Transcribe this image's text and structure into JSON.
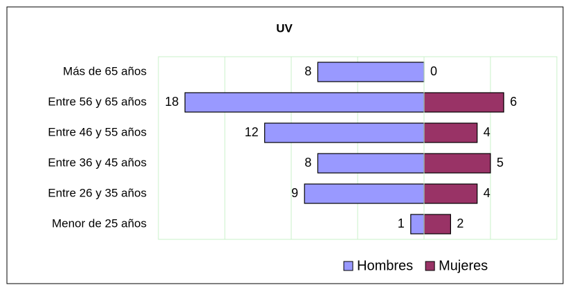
{
  "chart_data": {
    "type": "bar",
    "orientation": "horizontal",
    "title": "UV",
    "categories": [
      "Más de 65 años",
      "Entre 56 y 65 años",
      "Entre 46 y 55 años",
      "Entre 36 y 45 años",
      "Entre 26 y 35 años",
      "Menor de 25 años"
    ],
    "series": [
      {
        "name": "Hombres",
        "color": "#9999ff",
        "values": [
          -8,
          -18,
          -12,
          -8,
          -9,
          -1
        ],
        "value_labels": [
          "8",
          "18",
          "12",
          "8",
          "9",
          "1"
        ]
      },
      {
        "name": "Mujeres",
        "color": "#993366",
        "values": [
          0,
          6,
          4,
          5,
          4,
          2
        ]
      }
    ],
    "xlim": [
      -20,
      10
    ],
    "xticks": [
      -20,
      -15,
      -10,
      -5,
      0,
      5,
      10
    ],
    "grid": true,
    "legend": "bottom"
  }
}
